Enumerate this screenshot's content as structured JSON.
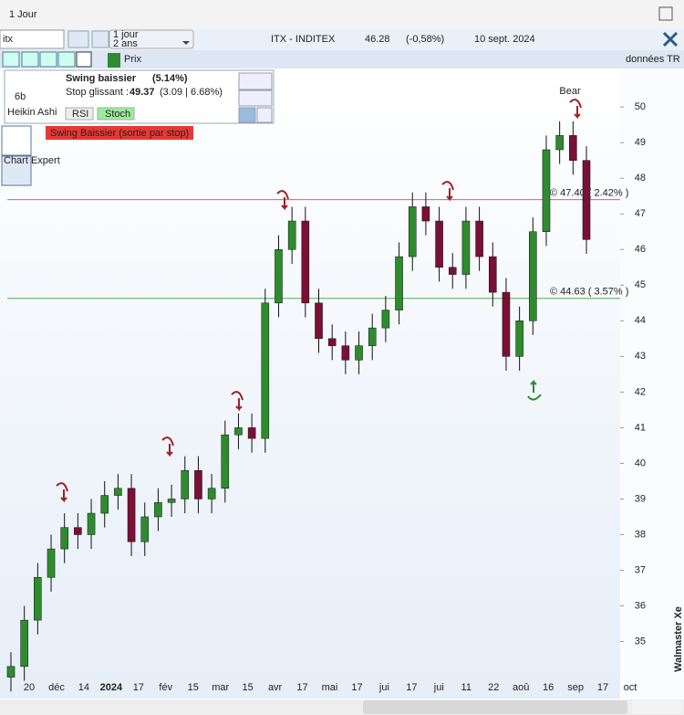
{
  "window": {
    "title": "1 Jour"
  },
  "toolbar": {
    "search": "itx",
    "period": "1 jour",
    "range": "2 ans",
    "symbol": "ITX - INDITEX",
    "price": "46.28",
    "change": "(-0,58%)",
    "date": "10 sept. 2024"
  },
  "subbar": {
    "prix": "Prix",
    "data_source": "données TR"
  },
  "info_box": {
    "style_label": "Heikin Ashi",
    "bars": "6b",
    "signal": "Swing baissier",
    "signal_pct": "(5.14%)",
    "stop_label": "Stop glissant :",
    "stop_value": "49.37",
    "stop_detail": "(3.09 | 6.68%)",
    "rsi": "RSI",
    "stoch": "Stoch",
    "alert": "Swing Baissier (sortie par stop)",
    "icon_text": "Chart Expert"
  },
  "watermark": "Walmaster Xe",
  "chart_data": {
    "type": "candlestick",
    "xtick_labels": [
      "20",
      "déc",
      "14",
      "2024",
      "17",
      "fév",
      "15",
      "mar",
      "15",
      "avr",
      "17",
      "mai",
      "17",
      "jui",
      "17",
      "jui",
      "11",
      "22",
      "aoû",
      "16",
      "sep",
      "17",
      "oct"
    ],
    "open": [
      34.0,
      34.3,
      35.6,
      36.8,
      37.6,
      38.2,
      38.0,
      38.6,
      39.1,
      39.3,
      37.8,
      38.5,
      38.9,
      39.0,
      39.8,
      39.0,
      39.3,
      40.8,
      41.0,
      40.7,
      44.5,
      46.0,
      46.8,
      44.5,
      43.5,
      43.3,
      42.9,
      43.3,
      43.8,
      44.3,
      45.8,
      47.2,
      46.8,
      45.5,
      45.3,
      46.8,
      45.8,
      44.8,
      43.0,
      44.0,
      46.5,
      48.8,
      49.2,
      48.5
    ],
    "high": [
      34.7,
      36.0,
      37.2,
      38.0,
      38.6,
      38.6,
      39.0,
      39.5,
      39.7,
      39.7,
      38.9,
      39.3,
      39.4,
      40.2,
      40.2,
      39.7,
      41.2,
      41.4,
      41.4,
      44.9,
      46.4,
      47.2,
      47.2,
      44.9,
      43.9,
      43.7,
      43.7,
      44.2,
      44.7,
      46.2,
      47.6,
      47.6,
      47.2,
      45.9,
      47.2,
      47.2,
      46.2,
      45.2,
      44.4,
      46.9,
      49.2,
      49.6,
      49.6,
      48.9
    ],
    "low": [
      33.6,
      33.9,
      35.2,
      36.4,
      37.2,
      37.6,
      37.6,
      38.2,
      38.7,
      37.4,
      37.4,
      38.1,
      38.5,
      38.6,
      38.6,
      38.6,
      38.9,
      40.4,
      40.3,
      40.3,
      44.1,
      45.6,
      44.1,
      43.1,
      42.9,
      42.5,
      42.5,
      42.9,
      43.4,
      43.9,
      45.4,
      46.4,
      45.1,
      44.9,
      44.9,
      45.4,
      44.4,
      42.6,
      42.6,
      43.6,
      46.1,
      48.4,
      48.1,
      45.88
    ],
    "close": [
      34.3,
      35.6,
      36.8,
      37.6,
      38.2,
      38.0,
      38.6,
      39.1,
      39.3,
      37.8,
      38.5,
      38.9,
      39.0,
      39.8,
      39.0,
      39.3,
      40.8,
      41.0,
      40.7,
      44.5,
      46.0,
      46.8,
      44.5,
      43.5,
      43.3,
      42.9,
      43.3,
      43.8,
      44.3,
      45.8,
      47.2,
      46.8,
      45.5,
      45.3,
      46.8,
      45.8,
      44.8,
      43.0,
      44.0,
      46.5,
      48.8,
      49.2,
      48.5,
      46.28
    ],
    "up_color": "#2e8b2e",
    "down_color": "#7a1035",
    "ylim": [
      33.4,
      51.08
    ],
    "yticks": [
      35,
      36,
      37,
      38,
      39,
      40,
      41,
      42,
      43,
      44,
      45,
      46,
      47,
      48,
      49,
      50
    ],
    "levels": [
      {
        "value": 47.4,
        "label": "© 47.40 ( 2.42% )",
        "color": "#e06060"
      },
      {
        "value": 44.63,
        "label": "© 44.63 ( 3.57% )",
        "color": "#4caf50"
      }
    ],
    "marker": "Bear"
  }
}
